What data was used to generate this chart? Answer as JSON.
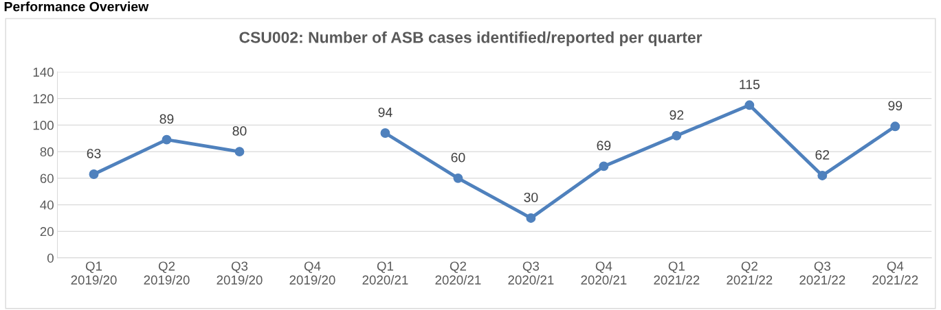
{
  "chart_data": {
    "type": "line",
    "title": "CSU002: Number of ASB cases identified/reported per quarter",
    "annotations": [
      "Performance Overview"
    ],
    "categories": [
      "Q1\n2019/20",
      "Q2\n2019/20",
      "Q3\n2019/20",
      "Q4\n2019/20",
      "Q1\n2020/21",
      "Q2\n2020/21",
      "Q3\n2020/21",
      "Q4\n2020/21",
      "Q1\n2021/22",
      "Q2\n2021/22",
      "Q3\n2021/22",
      "Q4\n2021/22"
    ],
    "series": [
      {
        "color": "#4f81bd",
        "values": [
          63,
          89,
          80,
          null,
          94,
          60,
          30,
          69,
          92,
          115,
          62,
          99
        ]
      }
    ],
    "ylim": [
      0,
      140
    ],
    "yticks": [
      0,
      20,
      40,
      60,
      80,
      100,
      120,
      140
    ],
    "grid": "y",
    "legend": false,
    "marker": "circle",
    "line_style": "solid",
    "data_labels": true
  }
}
